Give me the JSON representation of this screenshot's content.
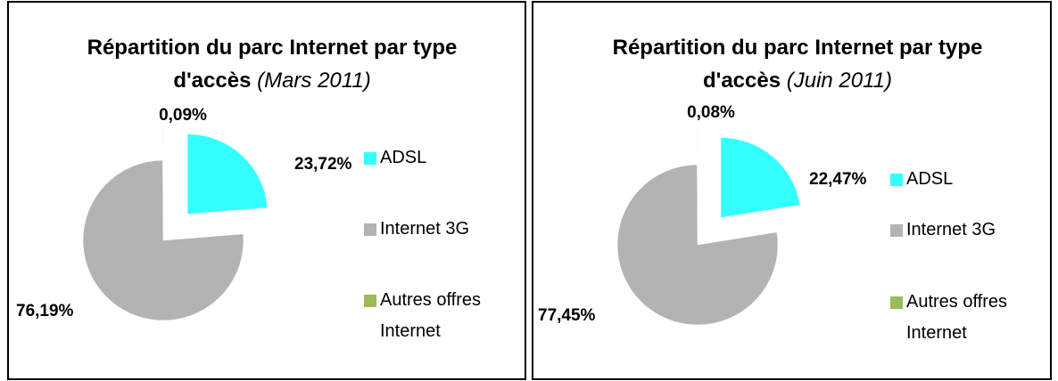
{
  "chart_data": [
    {
      "type": "pie",
      "title": "Répartition du parc Internet par type d'accès",
      "subtitle": "(Mars 2011)",
      "categories": [
        "ADSL",
        "Internet 3G",
        "Autres offres Internet"
      ],
      "values": [
        23.72,
        76.19,
        0.09
      ],
      "value_labels": [
        "23,72%",
        "76,19%",
        "0,09%"
      ],
      "colors": [
        "#33ffff",
        "#b3b3b3",
        "#9bbb59"
      ]
    },
    {
      "type": "pie",
      "title": "Répartition du parc Internet par type d'accès",
      "subtitle": "(Juin 2011)",
      "categories": [
        "ADSL",
        "Internet 3G",
        "Autres offres Internet"
      ],
      "values": [
        22.47,
        77.45,
        0.08
      ],
      "value_labels": [
        "22,47%",
        "77,45%",
        "0,08%"
      ],
      "colors": [
        "#33ffff",
        "#b3b3b3",
        "#9bbb59"
      ]
    }
  ]
}
